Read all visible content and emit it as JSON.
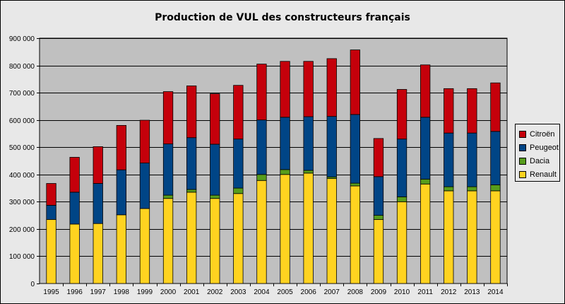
{
  "chart_data": {
    "type": "bar",
    "stacked": true,
    "title": "Production de VUL des constructeurs français",
    "categories": [
      "1995",
      "1996",
      "1997",
      "1998",
      "1999",
      "2000",
      "2001",
      "2002",
      "2003",
      "2004",
      "2005",
      "2006",
      "2007",
      "2008",
      "2009",
      "2010",
      "2011",
      "2012",
      "2013",
      "2014"
    ],
    "ylim": [
      0,
      900000
    ],
    "yticks": [
      "0",
      "100 000",
      "200 000",
      "300 000",
      "400 000",
      "500 000",
      "600 000",
      "700 000",
      "800 000",
      "900 000"
    ],
    "grid": true,
    "legend_position": "right",
    "series": [
      {
        "name": "Renault",
        "color": "#ffd320",
        "values": [
          235000,
          218000,
          220000,
          252000,
          275000,
          312000,
          335000,
          312000,
          330000,
          378000,
          400000,
          405000,
          385000,
          358000,
          235000,
          300000,
          365000,
          340000,
          340000,
          340000
        ]
      },
      {
        "name": "Dacia",
        "color": "#579d1c",
        "values": [
          0,
          0,
          0,
          0,
          0,
          12000,
          10000,
          12000,
          20000,
          22000,
          18000,
          10000,
          6000,
          10000,
          15000,
          18000,
          18000,
          15000,
          15000,
          22000
        ]
      },
      {
        "name": "Peugeot",
        "color": "#004586",
        "values": [
          52000,
          117000,
          147000,
          165000,
          167000,
          188000,
          190000,
          187000,
          180000,
          200000,
          192000,
          197000,
          222000,
          252000,
          142000,
          212000,
          227000,
          197000,
          197000,
          196000
        ]
      },
      {
        "name": "Citroën",
        "color": "#c5000b",
        "values": [
          80000,
          128000,
          135000,
          163000,
          157000,
          192000,
          190000,
          185000,
          197000,
          205000,
          205000,
          203000,
          212000,
          237000,
          140000,
          182000,
          192000,
          163000,
          163000,
          178000
        ]
      }
    ]
  }
}
